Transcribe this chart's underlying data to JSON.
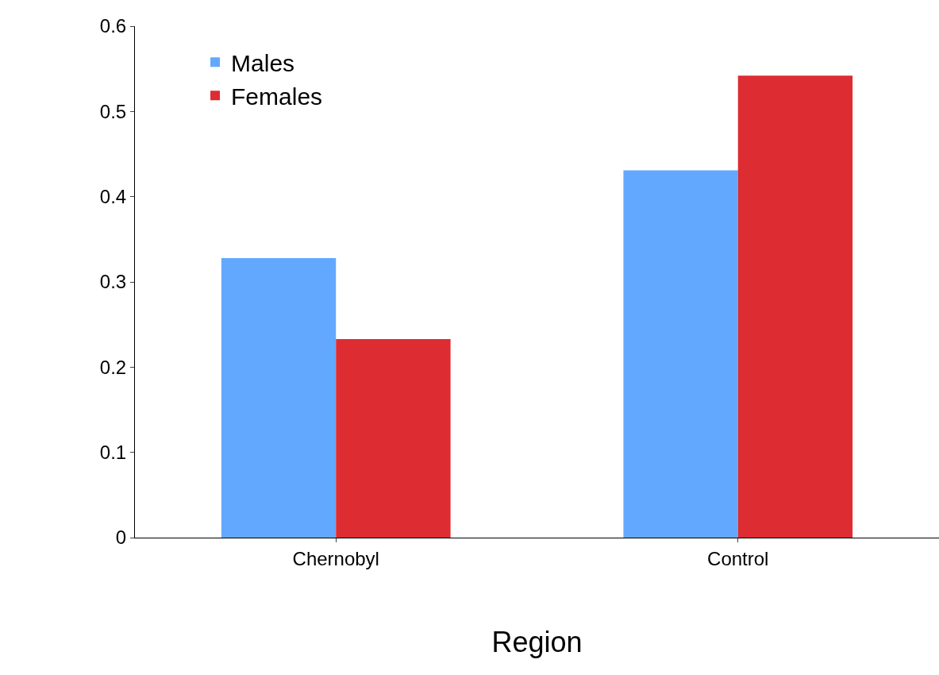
{
  "chart_data": {
    "type": "bar",
    "xlabel": "Region",
    "categories": [
      "Chernobyl",
      "Control"
    ],
    "series": [
      {
        "name": "Males",
        "color": "#62a8ff",
        "values": [
          0.328,
          0.431
        ]
      },
      {
        "name": "Females",
        "color": "#dd2c32",
        "values": [
          0.233,
          0.542
        ]
      }
    ],
    "ylim": [
      0,
      0.6
    ],
    "yticks": [
      0,
      0.1,
      0.2,
      0.3,
      0.4,
      0.5,
      0.6
    ],
    "legend": "top left"
  }
}
